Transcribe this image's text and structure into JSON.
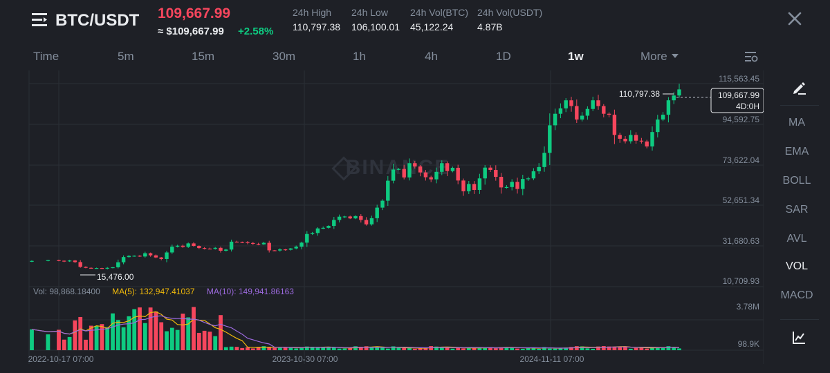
{
  "header": {
    "symbol": "BTC/USDT",
    "last_price": "109,667.99",
    "usd_price": "≈ $109,667.99",
    "change": "+2.58%",
    "stats": [
      {
        "label": "24h High",
        "value": "110,797.38"
      },
      {
        "label": "24h Low",
        "value": "106,100.01"
      },
      {
        "label": "24h Vol(BTC)",
        "value": "45,122.24"
      },
      {
        "label": "24h Vol(USDT)",
        "value": "4.87B"
      }
    ],
    "menu_icon": "menu-icon",
    "close_icon": "close-icon"
  },
  "tabs": [
    "Time",
    "5m",
    "15m",
    "30m",
    "1h",
    "4h",
    "1D",
    "1w",
    "More"
  ],
  "active_tab": "1w",
  "sidebar": {
    "draw_icon": "pencil-icon",
    "indicators": [
      "MA",
      "EMA",
      "BOLL",
      "SAR",
      "AVL",
      "VOL",
      "MACD"
    ],
    "active": "VOL",
    "chart_type_icon": "chart-type-icon"
  },
  "chart": {
    "watermark": "BINANCE",
    "price_axis": [
      "115,563.45",
      "94,592.75",
      "73,622.04",
      "52,651.34",
      "31,680.63",
      "10,709.93"
    ],
    "high_marker": "110,797.38",
    "low_marker": "15,476.00",
    "current_price_label": "109,667.99",
    "countdown_label": "4D:0H",
    "volume_info": {
      "vol": "Vol: 98,868.18400",
      "ma5": "MA(5): 132,947.41037",
      "ma10": "MA(10): 149,941.86163"
    },
    "volume_axis": [
      "3.78M",
      "98.9K"
    ],
    "date_axis": [
      "2022-10-17 07:00",
      "2023-10-30 07:00",
      "2024-11-11 07:00"
    ],
    "colors": {
      "up": "#0ecb81",
      "down": "#f6465d",
      "ma5": "#f0b90b",
      "ma10": "#9c6ade"
    }
  },
  "chart_data": {
    "type": "candlestick",
    "interval": "1w",
    "ylim": [
      10709.93,
      115563.45
    ],
    "first_date": "2022-10-17",
    "high": 110797.38,
    "low": 15476.0,
    "close_path": [
      [
        0,
        20500
      ],
      [
        3,
        20900
      ],
      [
        5,
        20600
      ],
      [
        6,
        20300
      ],
      [
        7,
        20700
      ],
      [
        8,
        19900
      ],
      [
        9,
        17400
      ],
      [
        10,
        16900
      ],
      [
        11,
        16700
      ],
      [
        12,
        16800
      ],
      [
        13,
        16500
      ],
      [
        14,
        16900
      ],
      [
        15,
        17200
      ],
      [
        16,
        19800
      ],
      [
        17,
        22500
      ],
      [
        18,
        23100
      ],
      [
        19,
        23200
      ],
      [
        20,
        22800
      ],
      [
        21,
        24500
      ],
      [
        22,
        23400
      ],
      [
        23,
        22300
      ],
      [
        24,
        21500
      ],
      [
        25,
        24900
      ],
      [
        26,
        27900
      ],
      [
        27,
        28400
      ],
      [
        28,
        27800
      ],
      [
        29,
        29600
      ],
      [
        30,
        28300
      ],
      [
        31,
        27200
      ],
      [
        32,
        26900
      ],
      [
        33,
        26800
      ],
      [
        34,
        27300
      ],
      [
        35,
        25800
      ],
      [
        36,
        26400
      ],
      [
        37,
        30500
      ],
      [
        38,
        30300
      ],
      [
        39,
        30200
      ],
      [
        40,
        29800
      ],
      [
        41,
        29400
      ],
      [
        42,
        29100
      ],
      [
        43,
        29900
      ],
      [
        44,
        26000
      ],
      [
        45,
        25900
      ],
      [
        46,
        26500
      ],
      [
        47,
        26300
      ],
      [
        48,
        27000
      ],
      [
        49,
        27900
      ],
      [
        50,
        30000
      ],
      [
        51,
        34500
      ],
      [
        52,
        35000
      ],
      [
        53,
        37400
      ],
      [
        54,
        37700
      ],
      [
        55,
        38700
      ],
      [
        56,
        41800
      ],
      [
        57,
        43500
      ],
      [
        58,
        43600
      ],
      [
        59,
        42600
      ],
      [
        60,
        43800
      ],
      [
        61,
        41800
      ],
      [
        62,
        39500
      ],
      [
        63,
        42700
      ],
      [
        64,
        48200
      ],
      [
        65,
        51800
      ],
      [
        66,
        62200
      ],
      [
        67,
        68000
      ],
      [
        68,
        68300
      ],
      [
        69,
        63900
      ],
      [
        70,
        71300
      ],
      [
        71,
        69600
      ],
      [
        72,
        66500
      ],
      [
        73,
        64000
      ],
      [
        74,
        62900
      ],
      [
        75,
        66800
      ],
      [
        76,
        71300
      ],
      [
        77,
        67200
      ],
      [
        78,
        68900
      ],
      [
        79,
        62300
      ],
      [
        80,
        56700
      ],
      [
        81,
        60500
      ],
      [
        82,
        57400
      ],
      [
        83,
        63400
      ],
      [
        84,
        69000
      ],
      [
        85,
        67800
      ],
      [
        86,
        64200
      ],
      [
        87,
        58700
      ],
      [
        88,
        58900
      ],
      [
        89,
        61600
      ],
      [
        90,
        57900
      ],
      [
        91,
        63100
      ],
      [
        92,
        63400
      ],
      [
        93,
        67100
      ],
      [
        94,
        69300
      ],
      [
        95,
        76700
      ],
      [
        96,
        91000
      ],
      [
        97,
        97000
      ],
      [
        98,
        99800
      ],
      [
        99,
        104000
      ],
      [
        100,
        101000
      ],
      [
        101,
        94000
      ],
      [
        102,
        96000
      ],
      [
        103,
        99500
      ],
      [
        104,
        104000
      ],
      [
        105,
        101000
      ],
      [
        106,
        97000
      ],
      [
        107,
        96500
      ],
      [
        108,
        86000
      ],
      [
        109,
        84000
      ],
      [
        110,
        82700
      ],
      [
        111,
        86000
      ],
      [
        112,
        83000
      ],
      [
        113,
        82600
      ],
      [
        114,
        80000
      ],
      [
        115,
        87500
      ],
      [
        116,
        94000
      ],
      [
        117,
        96500
      ],
      [
        118,
        104000
      ],
      [
        119,
        106500
      ],
      [
        120,
        109667.99
      ]
    ],
    "volume": {
      "last": 98868.184,
      "ma5": 132947.41037,
      "ma10": 149941.86163,
      "ylim_label_top": "3.78M",
      "ylim_label_bottom": "98.9K"
    }
  }
}
